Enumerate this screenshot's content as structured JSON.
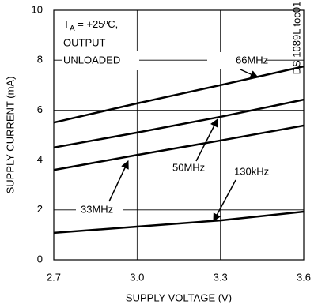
{
  "chart_data": {
    "type": "line",
    "xlabel": "SUPPLY VOLTAGE (V)",
    "ylabel": "SUPPLY CURRENT (mA)",
    "x": [
      2.7,
      3.0,
      3.3,
      3.6
    ],
    "series": [
      {
        "name": "66MHz",
        "color": "#000000",
        "values": [
          5.5,
          6.27,
          7.0,
          7.75
        ]
      },
      {
        "name": "50MHz",
        "color": "#000000",
        "values": [
          4.5,
          5.1,
          5.73,
          6.42
        ]
      },
      {
        "name": "33MHz",
        "color": "#000000",
        "values": [
          3.6,
          4.2,
          4.78,
          5.38
        ]
      },
      {
        "name": "130kHz",
        "color": "#000000",
        "values": [
          1.08,
          1.33,
          1.58,
          1.93
        ]
      }
    ],
    "xlim": [
      2.7,
      3.6
    ],
    "xticks": [
      2.7,
      {
        "value": 3,
        "label": "3.0"
      },
      3.3,
      3.6
    ],
    "ylim": [
      0,
      10
    ],
    "yticks": [
      0,
      2,
      4,
      6,
      8,
      10
    ],
    "grid": true,
    "annotations": {
      "condition": {
        "t": "T",
        "sub": "A",
        "rest": " = +25ºC,"
      },
      "line2": "OUTPUT",
      "line3": "UNLOADED",
      "figure_id": "DS 1089L toc01"
    }
  }
}
